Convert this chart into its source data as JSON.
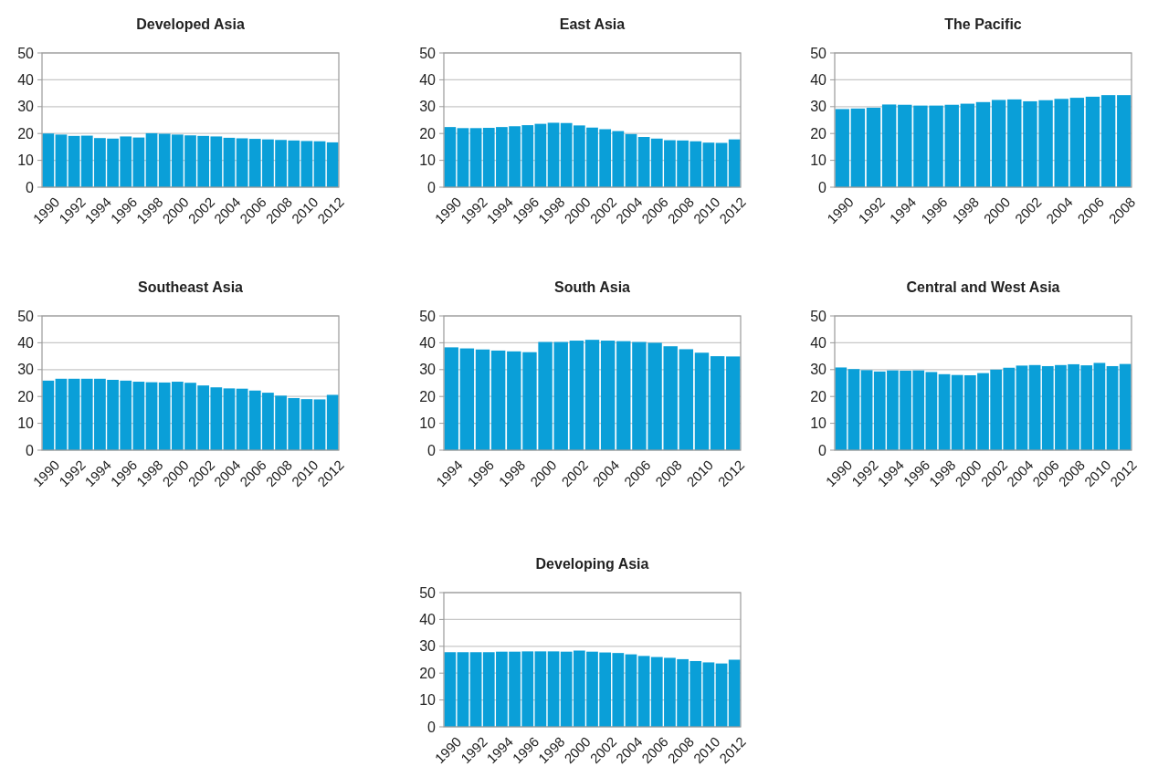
{
  "chart_data": [
    {
      "type": "bar",
      "title": "Developed Asia",
      "categories": [
        "1990",
        null,
        "1992",
        null,
        "1994",
        null,
        "1996",
        null,
        "1998",
        null,
        "2000",
        null,
        "2002",
        null,
        "2004",
        null,
        "2006",
        null,
        "2008",
        null,
        "2010",
        null,
        "2012"
      ],
      "values": [
        20,
        19.6,
        19.1,
        19.2,
        18.3,
        18.1,
        18.9,
        18.5,
        20.1,
        19.9,
        19.6,
        19.3,
        19.1,
        18.9,
        18.4,
        18.2,
        18,
        17.8,
        17.6,
        17.4,
        17.2,
        17.1,
        16.7
      ],
      "color": "#0a9fd8",
      "ylim": [
        0,
        50
      ],
      "yticks": [
        0,
        10,
        20,
        30,
        40,
        50
      ],
      "grid": "y"
    },
    {
      "type": "bar",
      "title": "East Asia",
      "categories": [
        "1990",
        null,
        "1992",
        null,
        "1994",
        null,
        "1996",
        null,
        "1998",
        null,
        "2000",
        null,
        "2002",
        null,
        "2004",
        null,
        "2006",
        null,
        "2008",
        null,
        "2010",
        null,
        "2012"
      ],
      "values": [
        22.4,
        22,
        22,
        22.1,
        22.4,
        22.7,
        23.1,
        23.6,
        24,
        23.9,
        23,
        22.2,
        21.6,
        20.9,
        19.8,
        18.7,
        18.1,
        17.5,
        17.4,
        17.1,
        16.6,
        16.5,
        17.8
      ],
      "color": "#0a9fd8",
      "ylim": [
        0,
        50
      ],
      "yticks": [
        0,
        10,
        20,
        30,
        40,
        50
      ],
      "grid": "y"
    },
    {
      "type": "bar",
      "title": "The Pacific",
      "categories": [
        "1990",
        null,
        "1992",
        null,
        "1994",
        null,
        "1996",
        null,
        "1998",
        null,
        "2000",
        null,
        "2002",
        null,
        "2004",
        null,
        "2006",
        null,
        "2008"
      ],
      "values": [
        29.1,
        29.3,
        29.6,
        30.8,
        30.7,
        30.4,
        30.4,
        30.7,
        31.1,
        31.7,
        32.5,
        32.7,
        32,
        32.4,
        32.9,
        33.3,
        33.7,
        34.3,
        34.3
      ],
      "color": "#0a9fd8",
      "ylim": [
        0,
        50
      ],
      "yticks": [
        0,
        10,
        20,
        30,
        40,
        50
      ],
      "grid": "y"
    },
    {
      "type": "bar",
      "title": "Southeast Asia",
      "categories": [
        "1990",
        null,
        "1992",
        null,
        "1994",
        null,
        "1996",
        null,
        "1998",
        null,
        "2000",
        null,
        "2002",
        null,
        "2004",
        null,
        "2006",
        null,
        "2008",
        null,
        "2010",
        null,
        "2012"
      ],
      "values": [
        25.9,
        26.6,
        26.6,
        26.6,
        26.6,
        26.2,
        25.9,
        25.5,
        25.3,
        25.2,
        25.5,
        25.1,
        24.1,
        23.4,
        23,
        22.9,
        22.2,
        21.4,
        20.3,
        19.4,
        19,
        18.9,
        20.6
      ],
      "color": "#0a9fd8",
      "ylim": [
        0,
        50
      ],
      "yticks": [
        0,
        10,
        20,
        30,
        40,
        50
      ],
      "grid": "y"
    },
    {
      "type": "bar",
      "title": "South Asia",
      "categories": [
        "1994",
        null,
        "1996",
        null,
        "1998",
        null,
        "2000",
        null,
        "2002",
        null,
        "2004",
        null,
        "2006",
        null,
        "2008",
        null,
        "2010",
        null,
        "2012"
      ],
      "values": [
        38.3,
        37.9,
        37.5,
        37.1,
        36.8,
        36.5,
        40.3,
        40.3,
        40.8,
        41.1,
        40.8,
        40.6,
        40.3,
        40,
        38.7,
        37.6,
        36.3,
        35,
        34.9
      ],
      "color": "#0a9fd8",
      "ylim": [
        0,
        50
      ],
      "yticks": [
        0,
        10,
        20,
        30,
        40,
        50
      ],
      "grid": "y"
    },
    {
      "type": "bar",
      "title": "Central and West Asia",
      "categories": [
        "1990",
        null,
        "1992",
        null,
        "1994",
        null,
        "1996",
        null,
        "1998",
        null,
        "2000",
        null,
        "2002",
        null,
        "2004",
        null,
        "2006",
        null,
        "2008",
        null,
        "2010",
        null,
        "2012"
      ],
      "values": [
        30.8,
        30.2,
        29.8,
        29.3,
        29.7,
        29.6,
        29.7,
        29.1,
        28.3,
        28,
        27.9,
        28.7,
        30,
        30.7,
        31.5,
        31.7,
        31.3,
        31.7,
        32,
        31.6,
        32.5,
        31.3,
        32.1
      ],
      "color": "#0a9fd8",
      "ylim": [
        0,
        50
      ],
      "yticks": [
        0,
        10,
        20,
        30,
        40,
        50
      ],
      "grid": "y"
    },
    {
      "type": "bar",
      "title": "Developing Asia",
      "categories": [
        "1990",
        null,
        "1992",
        null,
        "1994",
        null,
        "1996",
        null,
        "1998",
        null,
        "2000",
        null,
        "2002",
        null,
        "2004",
        null,
        "2006",
        null,
        "2008",
        null,
        "2010",
        null,
        "2012"
      ],
      "values": [
        27.8,
        27.8,
        27.8,
        27.8,
        28,
        28,
        28.1,
        28.1,
        28.1,
        28,
        28.4,
        28,
        27.7,
        27.5,
        27,
        26.4,
        26,
        25.7,
        25.2,
        24.5,
        24,
        23.6,
        25
      ],
      "color": "#0a9fd8",
      "ylim": [
        0,
        50
      ],
      "yticks": [
        0,
        10,
        20,
        30,
        40,
        50
      ],
      "grid": "y"
    }
  ]
}
